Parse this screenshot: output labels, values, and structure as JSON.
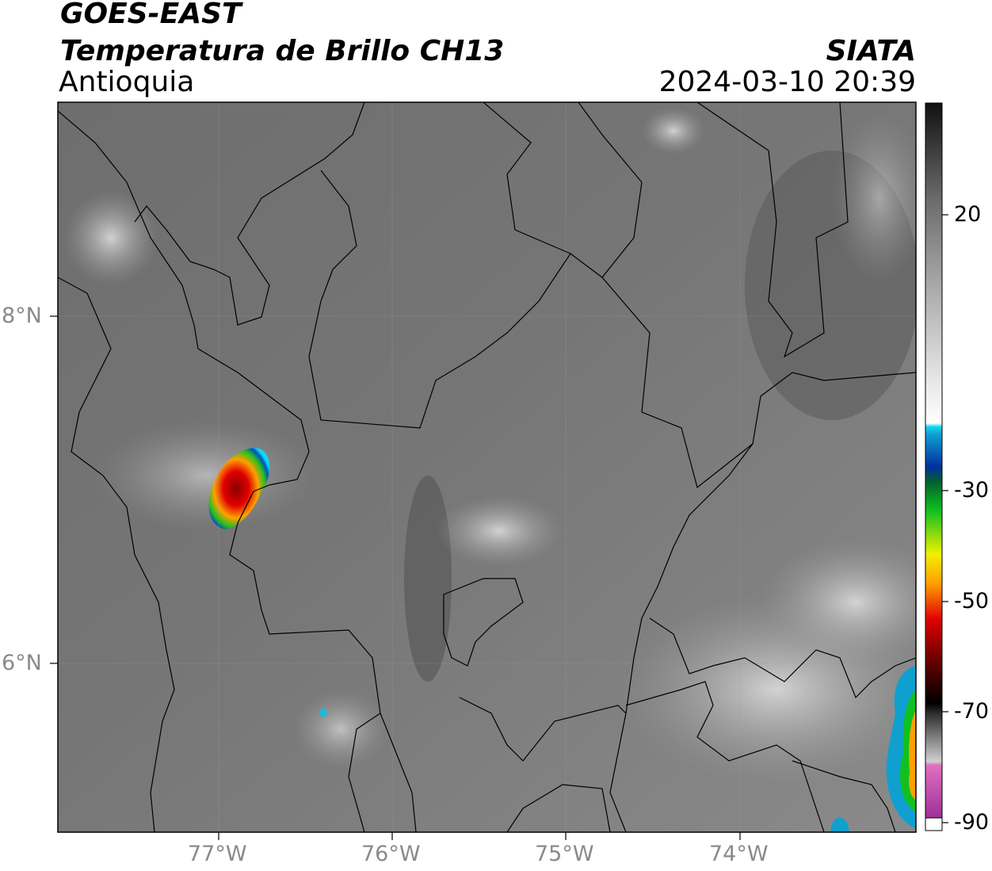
{
  "header": {
    "line1": "GOES-EAST",
    "line2": "Temperatura de Brillo CH13",
    "line3": "Antioquia",
    "agency": "SIATA",
    "datetime": "2024-03-10 20:39"
  },
  "axes": {
    "x_ticks": [
      "77°W",
      "76°W",
      "75°W",
      "74°W"
    ],
    "y_ticks": [
      "8°N",
      "6°N"
    ]
  },
  "colorbar": {
    "ticks": [
      "20",
      "-30",
      "-50",
      "-70",
      "-90"
    ],
    "colors": {
      "dark": "#111111",
      "gray": "#808080",
      "light": "#f5f5f5",
      "cyan": "#10d8f0",
      "blue": "#0030a0",
      "green": "#10c020",
      "yellow": "#f0f000",
      "orange": "#ffa000",
      "red": "#e00000",
      "darkred": "#600000",
      "black": "#000000",
      "pink": "#e070c0",
      "purple": "#902090"
    }
  }
}
